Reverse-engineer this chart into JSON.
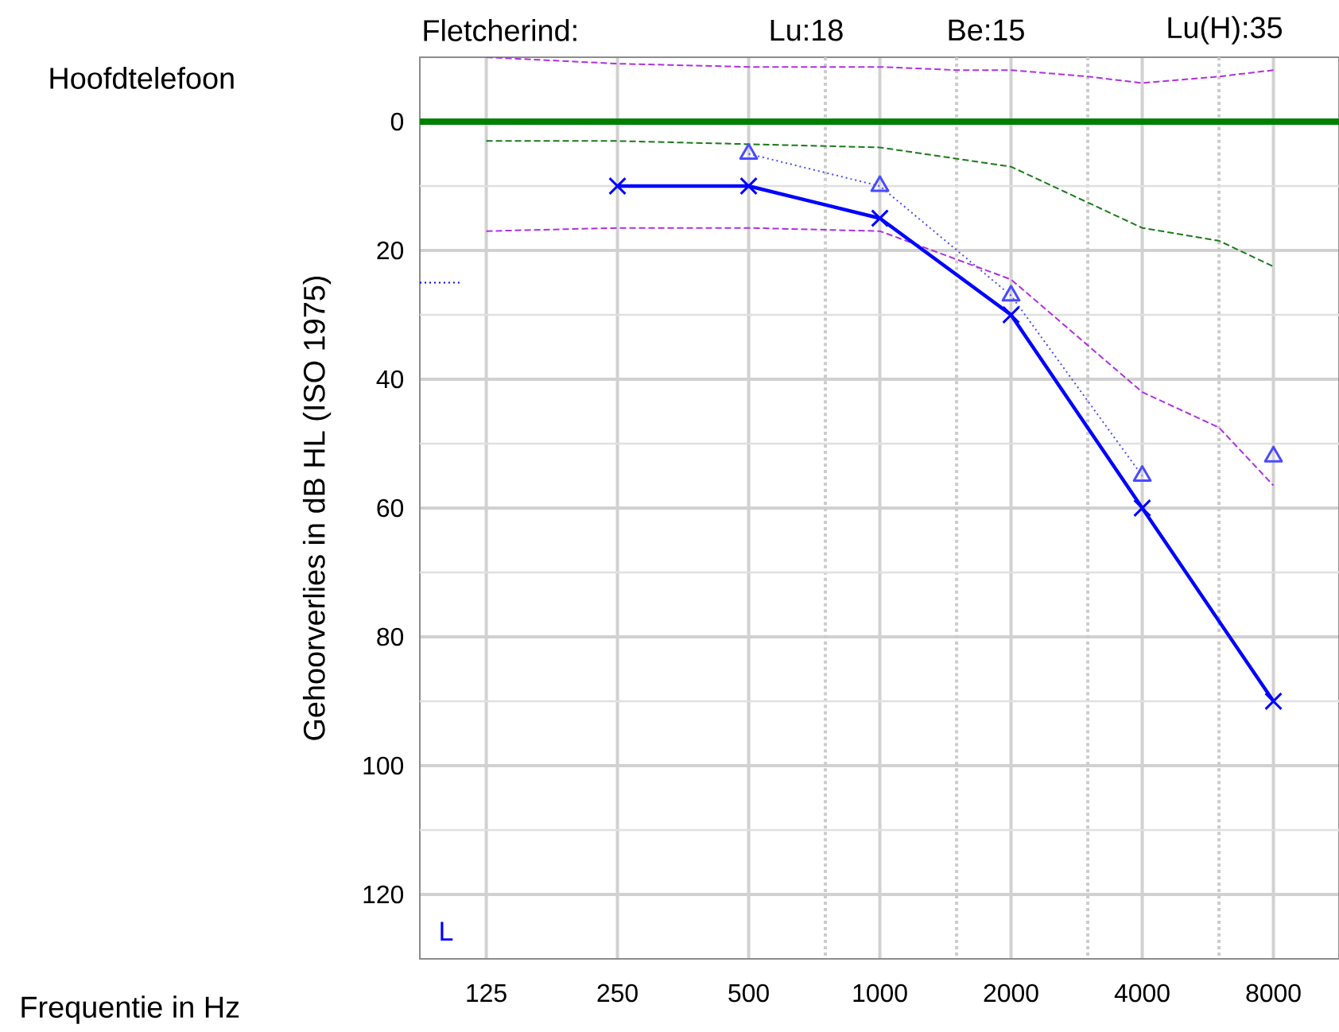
{
  "chart_data": {
    "type": "line",
    "xlabel": "Frequentie in Hz",
    "ylabel": "Gehoorverlies in dB HL (ISO 1975)",
    "annotations": [
      "Hoofdtelefoon",
      "Fletcherind:",
      "Lu:18",
      "Be:15",
      "Lu(H):35",
      "L"
    ],
    "log": "x",
    "xlim": [
      88,
      11314
    ],
    "ylim": [
      130,
      -10
    ],
    "xticks": [
      125,
      250,
      500,
      {
        "value": 750,
        "label": null
      },
      1000,
      {
        "value": 1500,
        "label": null
      },
      2000,
      {
        "value": 3000,
        "label": null
      },
      4000,
      {
        "value": 6000,
        "label": null
      },
      8000
    ],
    "yticks": [
      0,
      {
        "value": 10,
        "label": null
      },
      20,
      {
        "value": 30,
        "label": null
      },
      40,
      {
        "value": 50,
        "label": null
      },
      60,
      {
        "value": 70,
        "label": null
      },
      80,
      {
        "value": 90,
        "label": null
      },
      100,
      {
        "value": 110,
        "label": null
      },
      120
    ],
    "grid": true,
    "ref_lines": [
      {
        "axis": "y",
        "value": 0,
        "color": "#008000",
        "line_style": "solid"
      }
    ],
    "series": [
      {
        "color": "#b030e0",
        "line_style": "dashed",
        "marker": "none",
        "x": [
          125,
          250,
          500,
          1000,
          1500,
          2000,
          3000,
          4000,
          6000,
          8000
        ],
        "values": [
          -10,
          -9,
          -8.5,
          -8.5,
          -8,
          -8,
          -7,
          -6,
          -7,
          -8
        ]
      },
      {
        "color": "#b030e0",
        "line_style": "dashed",
        "marker": "none",
        "x": [
          125,
          250,
          500,
          1000,
          2000,
          4000,
          6000,
          8000
        ],
        "values": [
          17,
          16.5,
          16.5,
          17,
          24.5,
          42,
          47.5,
          56.5
        ]
      },
      {
        "color": "#1a7a1a",
        "line_style": "dashed",
        "marker": "none",
        "x": [
          125,
          250,
          500,
          1000,
          2000,
          4000,
          6000,
          8000
        ],
        "values": [
          3,
          3,
          3.5,
          4,
          7,
          16.5,
          18.5,
          22.5
        ]
      },
      {
        "color": "#0000ff",
        "line_style": "dotted",
        "marker": "none",
        "x": [
          88,
          110
        ],
        "values": [
          25,
          25
        ]
      },
      {
        "color": "#4a4aff",
        "line_style": "dotted",
        "marker": "triangle",
        "x": [
          500,
          1000,
          2000,
          4000,
          6000,
          8000
        ],
        "values": [
          5,
          10,
          27,
          55,
          null,
          52
        ]
      },
      {
        "color": "#0000ff",
        "line_style": "solid",
        "marker": "cross",
        "x": [
          250,
          500,
          1000,
          2000,
          4000,
          8000
        ],
        "values": [
          10,
          10,
          15,
          30,
          60,
          90
        ]
      }
    ]
  }
}
